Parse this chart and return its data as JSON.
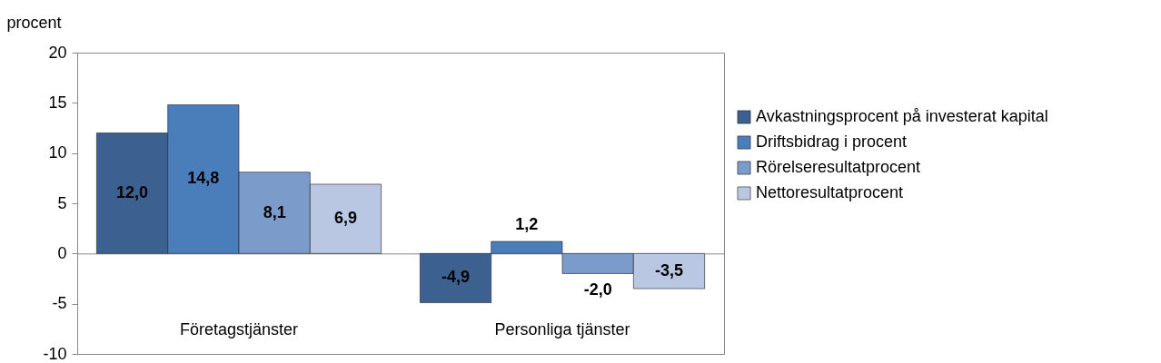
{
  "chart_data": {
    "type": "bar",
    "ylabel": "procent",
    "categories": [
      "Företagstjänster",
      "Personliga tjänster"
    ],
    "series": [
      {
        "name": "Avkastningsprocent på investerat kapital",
        "color": "#3c6190",
        "values": [
          12.0,
          -4.9
        ],
        "value_labels": [
          "12,0",
          "-4,9"
        ]
      },
      {
        "name": "Driftsbidrag i procent",
        "color": "#4a7ebb",
        "values": [
          14.8,
          1.2
        ],
        "value_labels": [
          "14,8",
          "1,2"
        ]
      },
      {
        "name": "Rörelseresultatprocent",
        "color": "#7b9bcb",
        "values": [
          8.1,
          -2.0
        ],
        "value_labels": [
          "8,1",
          "-2,0"
        ]
      },
      {
        "name": "Nettoresultatprocent",
        "color": "#b9c7e3",
        "values": [
          6.9,
          -3.5
        ],
        "value_labels": [
          "6,9",
          "-3,5"
        ]
      }
    ],
    "ylim": [
      -10,
      20
    ],
    "yticks": [
      -10,
      -5,
      0,
      5,
      10,
      15,
      20
    ],
    "legend": "right"
  }
}
